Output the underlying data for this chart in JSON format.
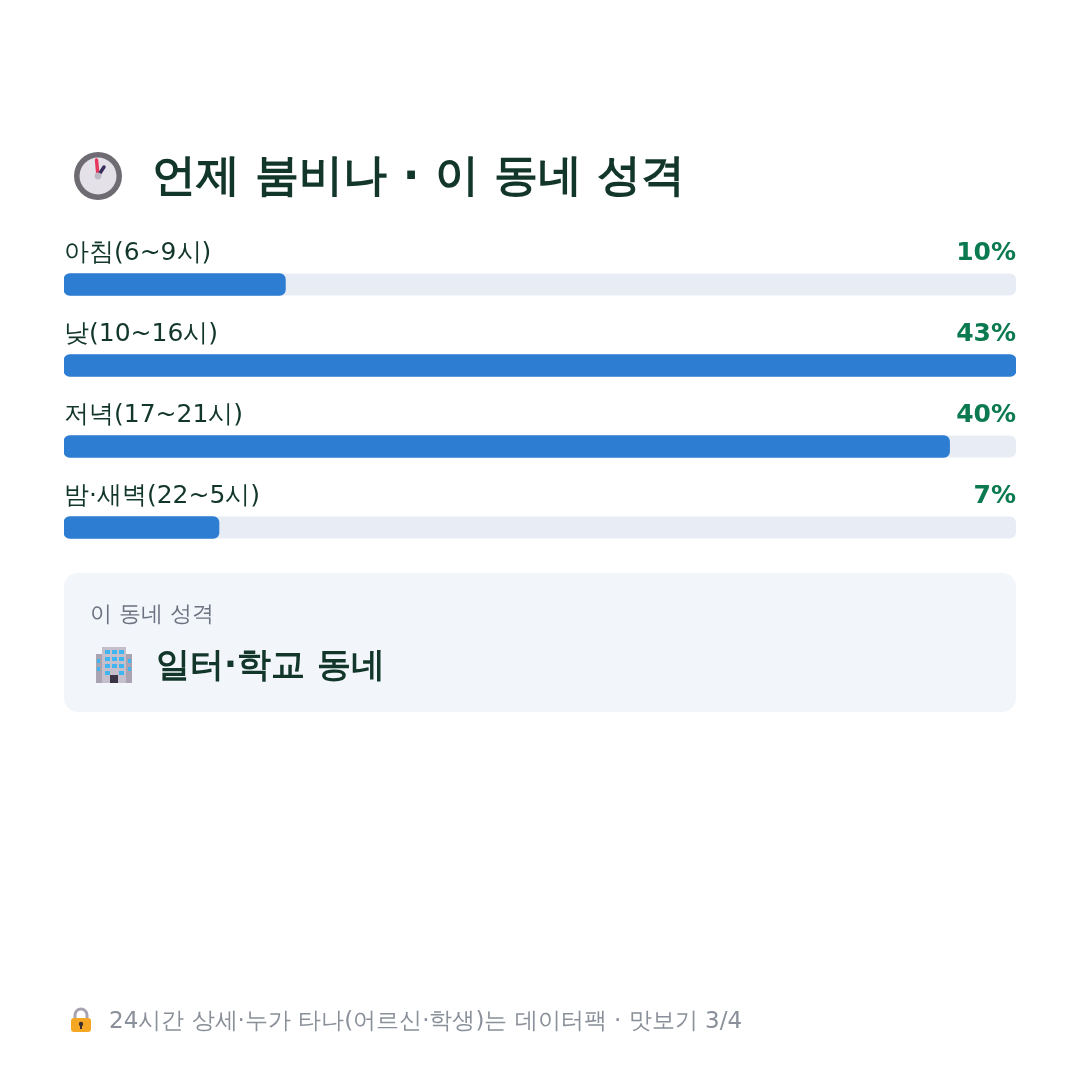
{
  "chart_data": {
    "type": "bar",
    "orientation": "horizontal",
    "title": "언제 붐비나 · 이 동네 성격",
    "categories": [
      "아침(6~9시)",
      "낮(10~16시)",
      "저녁(17~21시)",
      "밤·새벽(22~5시)"
    ],
    "values": [
      10,
      43,
      40,
      7
    ],
    "color": "#2d7dd2",
    "value_labels": [
      "10%",
      "43%",
      "40%",
      "7%"
    ],
    "xlim": [
      0,
      43
    ],
    "tick_labels": "y",
    "annotations": [
      "이 동네 성격",
      "일터·학교 동네",
      "24시간 상세·누가 타나(어르신·학생)는 데이터팩 · 맛보기 3/4"
    ]
  }
}
